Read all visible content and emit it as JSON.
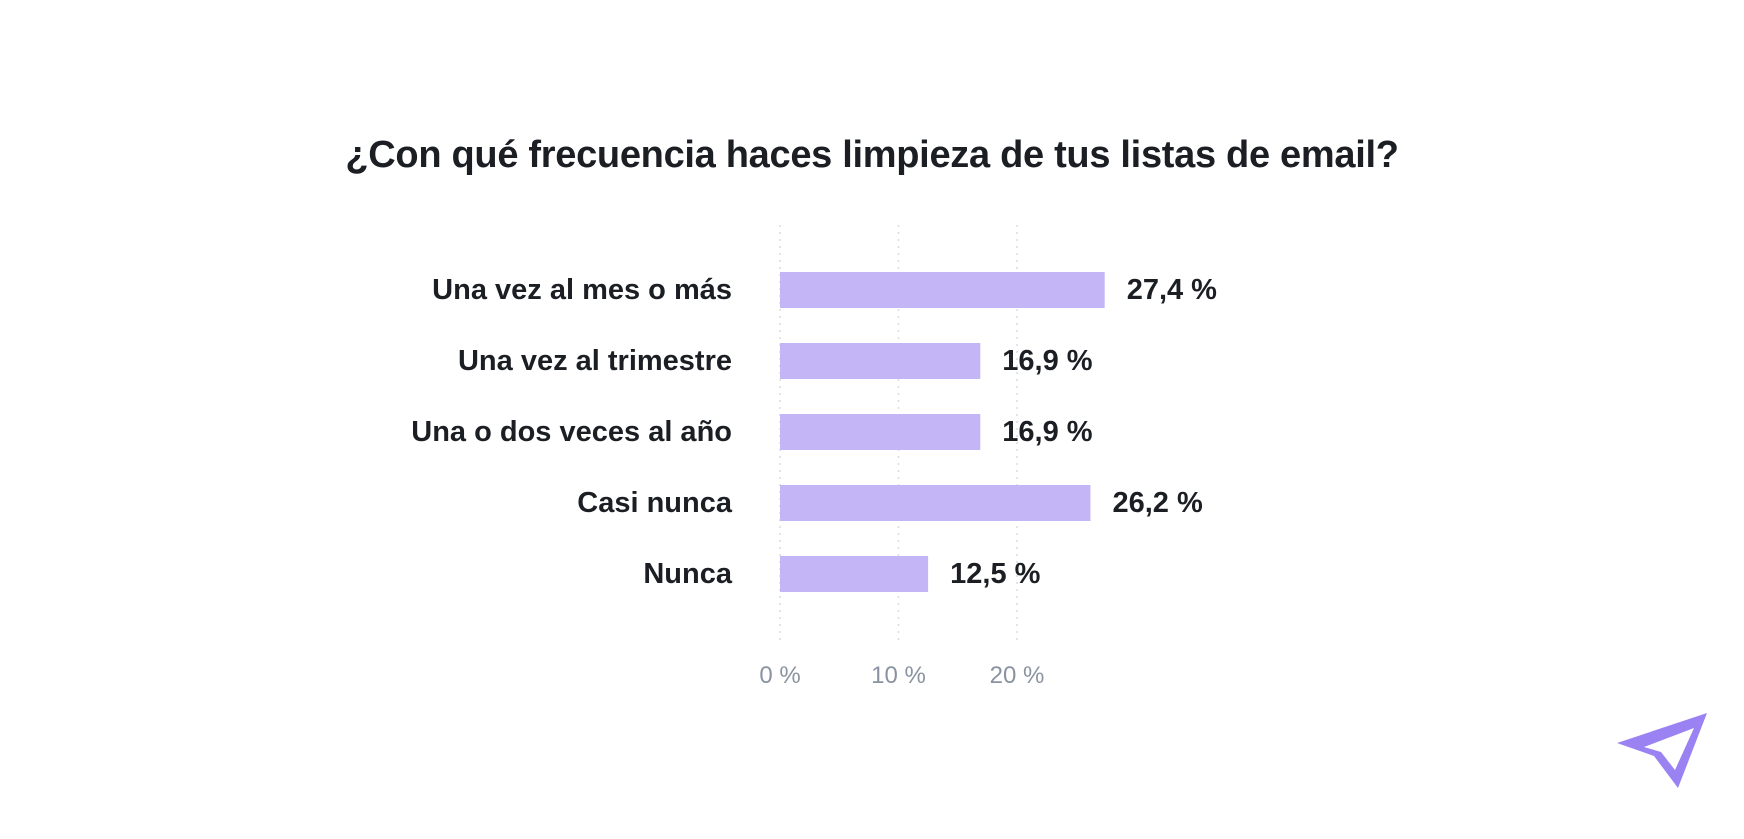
{
  "chart_data": {
    "type": "bar",
    "orientation": "horizontal",
    "title": "¿Con qué frecuencia haces limpieza de tus listas de email?",
    "categories": [
      "Una vez al mes o más",
      "Una vez al trimestre",
      "Una o dos veces al año",
      "Casi nunca",
      "Nunca"
    ],
    "values": [
      27.4,
      16.9,
      16.9,
      26.2,
      12.5
    ],
    "value_labels": [
      "27,4 %",
      "16,9 %",
      "16,9 %",
      "26,2 %",
      "12,5 %"
    ],
    "x_ticks": [
      0,
      10,
      20
    ],
    "x_tick_labels": [
      "0 %",
      "10 %",
      "20 %"
    ],
    "xlim": [
      0,
      30
    ],
    "xlabel": "",
    "ylabel": "",
    "grid": true,
    "bar_color": "#c4b5f7"
  },
  "colors": {
    "logo": "#9b82f3"
  },
  "logo": {
    "icon": "paper-plane-icon"
  }
}
